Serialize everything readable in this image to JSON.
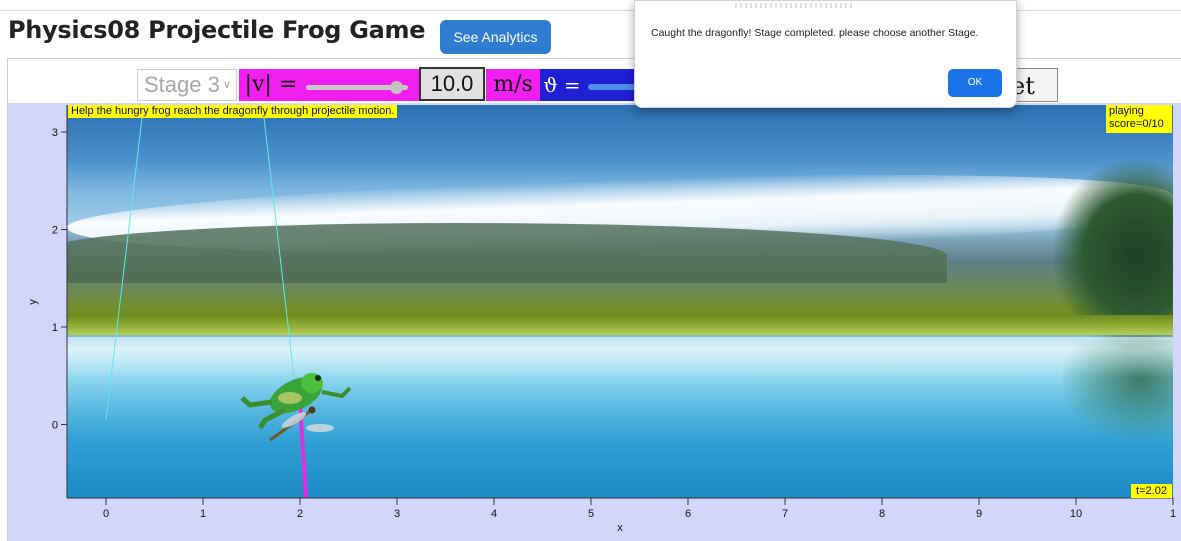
{
  "page": {
    "title": "Physics08 Projectile Frog Game",
    "analytics_button": "See Analytics"
  },
  "controls": {
    "stage_label": "Stage 3",
    "velocity_label": "|v| =",
    "velocity_value": "10.0",
    "velocity_unit": "m/s",
    "velocity_slider_fraction": 0.9,
    "angle_label": "ϑ =",
    "reset_label": "et"
  },
  "game": {
    "hint": "Help the hungry frog reach the dragonfly through projectile motion.",
    "status": "playing",
    "score": "score=0/10",
    "time": "t=2.02"
  },
  "axes": {
    "xlabel": "x",
    "ylabel": "y",
    "xticks": [
      "0",
      "1",
      "2",
      "3",
      "4",
      "5",
      "6",
      "7",
      "8",
      "9",
      "10",
      "1"
    ],
    "yticks": [
      "3",
      "2",
      "1",
      "0"
    ]
  },
  "dialog": {
    "message": "Caught the dragonfly! Stage completed. please choose another Stage.",
    "ok_label": "OK"
  },
  "colors": {
    "magenta": "#f01ff0",
    "blue": "#1f1fd6",
    "yellow": "#ffff00",
    "button_blue": "#2f7dd1"
  },
  "icons": {
    "frog": "frog-icon",
    "dragonfly": "dragonfly-icon"
  }
}
